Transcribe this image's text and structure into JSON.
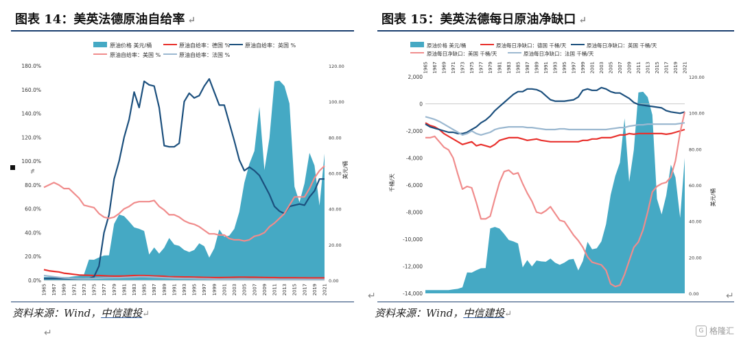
{
  "left": {
    "title": "图表 14：美英法德原油自给率",
    "source_prefix": "资料来源：Wind，",
    "source_org": "中信建投",
    "legend": {
      "price": "原油价格 美元/桶",
      "de": "原油自给率：德国 %",
      "uk": "原油自给率：英国 %",
      "us": "原油自给率：美国 %",
      "fr": "原油自给率：法国 %"
    },
    "y_left_label": "%",
    "y_right_label": "美元/桶",
    "y_left_ticks": [
      "0.0%",
      "20.0%",
      "40.0%",
      "60.0%",
      "80.0%",
      "100.0%",
      "120.0%",
      "140.0%",
      "160.0%",
      "180.0%"
    ],
    "y_right_ticks": [
      "0.00",
      "20.00",
      "40.00",
      "60.00",
      "80.00",
      "100.00",
      "120.00"
    ],
    "x_ticks": [
      "1965",
      "1967",
      "1969",
      "1971",
      "1973",
      "1975",
      "1977",
      "1979",
      "1981",
      "1983",
      "1985",
      "1987",
      "1989",
      "1991",
      "1993",
      "1995",
      "1997",
      "1999",
      "2001",
      "2003",
      "2005",
      "2007",
      "2009",
      "2011",
      "2013",
      "2015",
      "2017",
      "2019",
      "2021"
    ]
  },
  "right": {
    "title": "图表 15：美英法德每日原油净缺口",
    "source_prefix": "资料来源：Wind，",
    "source_org": "中信建投",
    "legend": {
      "price": "原油价格 美元/桶",
      "de": "原油每日净缺口：德国 千桶/天",
      "uk": "原油每日净缺口：英国 千桶/天",
      "us": "原油每日净缺口：美国 千桶/天",
      "fr": "原油每日净缺口：法国 千桶/天"
    },
    "y_left_label": "千桶/天",
    "y_right_label": "美元/桶",
    "y_left_ticks": [
      "-14,000",
      "-12,000",
      "-10,000",
      "-8,000",
      "-6,000",
      "-4,000",
      "-2,000",
      "0",
      "2,000"
    ],
    "y_right_ticks": [
      "0.00",
      "20.00",
      "40.00",
      "60.00",
      "80.00",
      "100.00",
      "120.00"
    ],
    "x_ticks": [
      "1965",
      "1967",
      "1969",
      "1971",
      "1973",
      "1975",
      "1977",
      "1979",
      "1981",
      "1983",
      "1985",
      "1987",
      "1989",
      "1991",
      "1993",
      "1995",
      "1997",
      "1999",
      "2001",
      "2003",
      "2005",
      "2007",
      "2009",
      "2011",
      "2013",
      "2015",
      "2017",
      "2019",
      "2021"
    ]
  },
  "watermark": "格隆汇",
  "colors": {
    "price": "#45a9c4",
    "de": "#e8302c",
    "uk": "#1b4f7d",
    "us": "#f08c8c",
    "fr": "#9bb8d0"
  },
  "chart_data": [
    {
      "type": "area+line",
      "title": "图表 14：美英法德原油自给率",
      "x": [
        1965,
        1966,
        1967,
        1968,
        1969,
        1970,
        1971,
        1972,
        1973,
        1974,
        1975,
        1976,
        1977,
        1978,
        1979,
        1980,
        1981,
        1982,
        1983,
        1984,
        1985,
        1986,
        1987,
        1988,
        1989,
        1990,
        1991,
        1992,
        1993,
        1994,
        1995,
        1996,
        1997,
        1998,
        1999,
        2000,
        2001,
        2002,
        2003,
        2004,
        2005,
        2006,
        2007,
        2008,
        2009,
        2010,
        2011,
        2012,
        2013,
        2014,
        2015,
        2016,
        2017,
        2018,
        2019,
        2020,
        2021
      ],
      "ylim_left": [
        0,
        180
      ],
      "ylim_right": [
        0,
        120
      ],
      "series": [
        {
          "name": "原油价格 美元/桶",
          "axis": "right",
          "kind": "area",
          "values": [
            1.8,
            1.8,
            1.8,
            1.8,
            1.8,
            1.8,
            2.2,
            2.5,
            3.3,
            11.6,
            11.5,
            12.8,
            13.9,
            14.0,
            31.6,
            36.8,
            35.9,
            32.9,
            29.6,
            28.8,
            27.6,
            14.4,
            18.4,
            14.9,
            18.2,
            23.7,
            20.0,
            19.3,
            17.0,
            15.8,
            17.0,
            20.7,
            19.1,
            12.7,
            17.9,
            28.5,
            24.4,
            25.0,
            28.8,
            38.3,
            54.5,
            65.1,
            72.4,
            97.0,
            61.7,
            79.5,
            111.3,
            111.7,
            108.7,
            98.9,
            52.4,
            43.7,
            54.2,
            71.3,
            64.2,
            41.8,
            70.9
          ]
        },
        {
          "name": "原油自给率：德国 %",
          "axis": "left",
          "kind": "line",
          "values": [
            9,
            8,
            7.5,
            7,
            6,
            5.5,
            5,
            4.5,
            4.3,
            4.2,
            4,
            4,
            3.8,
            3.6,
            3.5,
            3.5,
            3.6,
            3.8,
            4,
            4,
            4,
            3.8,
            3.6,
            3.5,
            3.4,
            3,
            3,
            2.9,
            2.8,
            2.8,
            2.7,
            2.6,
            2.5,
            2.4,
            2.3,
            2.3,
            2.4,
            2.5,
            2.6,
            2.7,
            2.7,
            2.6,
            2.6,
            2.5,
            2.4,
            2.3,
            2.3,
            2.2,
            2.2,
            2.2,
            2.2,
            2.1,
            2.1,
            2.0,
            2.0,
            2.0,
            2.0
          ]
        },
        {
          "name": "原油自给率：英国 %",
          "axis": "left",
          "kind": "line",
          "values": [
            1.5,
            1.5,
            1.5,
            1.5,
            1.3,
            1.3,
            1.2,
            1.2,
            1.3,
            1.5,
            3,
            12,
            40,
            55,
            85,
            100,
            120,
            135,
            158,
            145,
            167,
            164,
            163,
            145,
            113,
            112,
            112,
            115,
            150,
            157,
            153,
            155,
            163,
            169,
            158,
            147,
            147,
            132,
            117,
            101,
            92,
            95,
            92,
            88,
            80,
            72,
            62,
            58,
            56,
            62,
            63,
            64,
            63,
            70,
            75,
            85,
            85
          ]
        },
        {
          "name": "原油自给率：美国 %",
          "axis": "left",
          "kind": "line",
          "values": [
            78,
            80,
            82,
            80,
            77,
            77,
            73,
            69,
            63,
            62,
            61,
            56,
            53,
            52,
            53,
            56,
            60,
            62,
            65,
            66,
            66,
            66,
            67,
            62,
            59,
            55,
            55,
            53,
            50,
            48,
            47,
            45,
            42,
            39,
            39,
            38,
            38,
            35,
            34,
            34,
            33,
            34,
            37,
            38,
            40,
            45,
            48,
            52,
            56,
            63,
            70,
            70,
            70,
            77,
            86,
            92,
            96
          ]
        },
        {
          "name": "原油自给率：法国 %",
          "axis": "left",
          "kind": "line",
          "values": [
            4,
            3.5,
            3,
            2.5,
            2,
            1.8,
            1.5,
            1.4,
            1.3,
            1.5,
            1.6,
            1.8,
            2,
            2.1,
            2.2,
            2.2,
            2.4,
            2.6,
            2.8,
            3,
            3,
            2.8,
            2.6,
            2.4,
            2.2,
            2.0,
            1.8,
            1.7,
            1.6,
            1.6,
            1.5,
            1.4,
            1.3,
            1.2,
            1.1,
            1.0,
            1.0,
            1.0,
            1.0,
            1.0,
            1.0,
            1.0,
            0.9,
            0.9,
            0.9,
            0.9,
            0.9,
            0.8,
            0.8,
            0.8,
            0.8,
            0.8,
            0.8,
            0.8,
            0.8,
            0.8,
            0.8
          ]
        }
      ]
    },
    {
      "type": "area+line",
      "title": "图表 15：美英法德每日原油净缺口",
      "x": [
        1965,
        1966,
        1967,
        1968,
        1969,
        1970,
        1971,
        1972,
        1973,
        1974,
        1975,
        1976,
        1977,
        1978,
        1979,
        1980,
        1981,
        1982,
        1983,
        1984,
        1985,
        1986,
        1987,
        1988,
        1989,
        1990,
        1991,
        1992,
        1993,
        1994,
        1995,
        1996,
        1997,
        1998,
        1999,
        2000,
        2001,
        2002,
        2003,
        2004,
        2005,
        2006,
        2007,
        2008,
        2009,
        2010,
        2011,
        2012,
        2013,
        2014,
        2015,
        2016,
        2017,
        2018,
        2019,
        2020,
        2021
      ],
      "ylim_left": [
        -14000,
        2000
      ],
      "ylim_right": [
        0,
        120
      ],
      "series": [
        {
          "name": "原油价格 美元/桶",
          "axis": "right",
          "kind": "area",
          "values": [
            1.8,
            1.8,
            1.8,
            1.8,
            1.8,
            1.8,
            2.2,
            2.5,
            3.3,
            11.6,
            11.5,
            12.8,
            13.9,
            14.0,
            36.0,
            36.8,
            35.9,
            32.9,
            29.6,
            28.8,
            27.6,
            14.4,
            18.4,
            14.9,
            18.2,
            17.7,
            17.5,
            19.3,
            17.0,
            15.8,
            17.0,
            18.7,
            19.1,
            12.7,
            17.9,
            28.5,
            24.4,
            25.0,
            28.8,
            38.3,
            54.5,
            65.1,
            72.4,
            97.0,
            61.7,
            79.5,
            111.3,
            111.7,
            108.7,
            98.9,
            52.4,
            43.7,
            54.2,
            71.3,
            64.2,
            41.8,
            75.0
          ]
        },
        {
          "name": "原油每日净缺口：德国 千桶/天",
          "axis": "left",
          "kind": "line",
          "values": [
            -1400,
            -1600,
            -1700,
            -1900,
            -2200,
            -2400,
            -2600,
            -2800,
            -3000,
            -2900,
            -2800,
            -3100,
            -3000,
            -3100,
            -3200,
            -3000,
            -2700,
            -2600,
            -2500,
            -2500,
            -2500,
            -2600,
            -2700,
            -2650,
            -2600,
            -2700,
            -2750,
            -2800,
            -2800,
            -2800,
            -2800,
            -2800,
            -2800,
            -2800,
            -2700,
            -2700,
            -2600,
            -2600,
            -2500,
            -2500,
            -2500,
            -2400,
            -2300,
            -2300,
            -2200,
            -2250,
            -2200,
            -2200,
            -2200,
            -2200,
            -2200,
            -2200,
            -2250,
            -2200,
            -2100,
            -2000,
            -1900
          ]
        },
        {
          "name": "原油每日净缺口：英国 千桶/天",
          "axis": "left",
          "kind": "line",
          "values": [
            -1500,
            -1700,
            -1800,
            -1900,
            -2000,
            -2100,
            -2100,
            -2200,
            -2200,
            -2100,
            -1900,
            -1700,
            -1400,
            -1200,
            -900,
            -500,
            -200,
            100,
            400,
            700,
            900,
            900,
            1100,
            1100,
            1050,
            900,
            600,
            300,
            200,
            200,
            200,
            250,
            300,
            500,
            1000,
            1100,
            1000,
            1000,
            1200,
            1100,
            900,
            800,
            800,
            600,
            400,
            100,
            -50,
            -100,
            -150,
            -200,
            -250,
            -300,
            -500,
            -600,
            -650,
            -700,
            -600
          ]
        },
        {
          "name": "原油每日净缺口：美国 千桶/天",
          "axis": "left",
          "kind": "line",
          "values": [
            -2500,
            -2500,
            -2400,
            -2800,
            -3200,
            -3400,
            -4000,
            -5200,
            -6300,
            -6100,
            -6200,
            -7300,
            -8500,
            -8500,
            -8300,
            -7000,
            -5800,
            -5000,
            -4900,
            -5200,
            -5100,
            -5900,
            -6600,
            -7200,
            -8000,
            -8100,
            -7900,
            -7600,
            -8100,
            -8600,
            -8700,
            -9200,
            -9700,
            -10100,
            -10600,
            -11300,
            -11700,
            -11800,
            -11900,
            -12300,
            -13300,
            -13500,
            -13400,
            -12600,
            -11600,
            -10600,
            -10200,
            -9300,
            -8000,
            -6500,
            -6100,
            -5900,
            -5800,
            -5400,
            -4200,
            -2100,
            -600
          ]
        },
        {
          "name": "原油每日净缺口：法国 千桶/天",
          "axis": "left",
          "kind": "line",
          "values": [
            -950,
            -1050,
            -1150,
            -1300,
            -1500,
            -1700,
            -1900,
            -2100,
            -2300,
            -2200,
            -2000,
            -2200,
            -2300,
            -2200,
            -2100,
            -1900,
            -1800,
            -1750,
            -1700,
            -1700,
            -1700,
            -1700,
            -1750,
            -1750,
            -1800,
            -1850,
            -1900,
            -1900,
            -1900,
            -1850,
            -1850,
            -1900,
            -1900,
            -1900,
            -1900,
            -1900,
            -1900,
            -1900,
            -1900,
            -1900,
            -1850,
            -1800,
            -1750,
            -1750,
            -1650,
            -1600,
            -1550,
            -1550,
            -1500,
            -1500,
            -1500,
            -1500,
            -1500,
            -1500,
            -1500,
            -1450,
            -1400
          ]
        }
      ]
    }
  ]
}
